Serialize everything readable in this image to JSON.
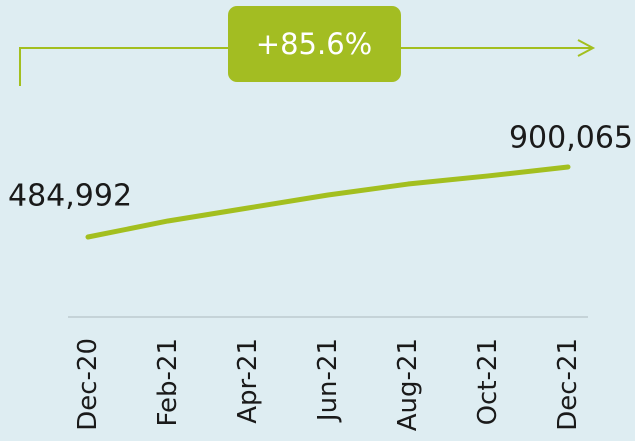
{
  "chart_data": {
    "type": "line",
    "annotation": "+85.6%",
    "categories": [
      "Dec-20",
      "Feb-21",
      "Apr-21",
      "Jun-21",
      "Aug-21",
      "Oct-21",
      "Dec-21"
    ],
    "values": [
      484992,
      580000,
      657000,
      734000,
      799000,
      847000,
      900065
    ],
    "value_labels": [
      "484,992",
      null,
      null,
      null,
      null,
      null,
      "900,065"
    ],
    "color": "#a3bf1f"
  }
}
